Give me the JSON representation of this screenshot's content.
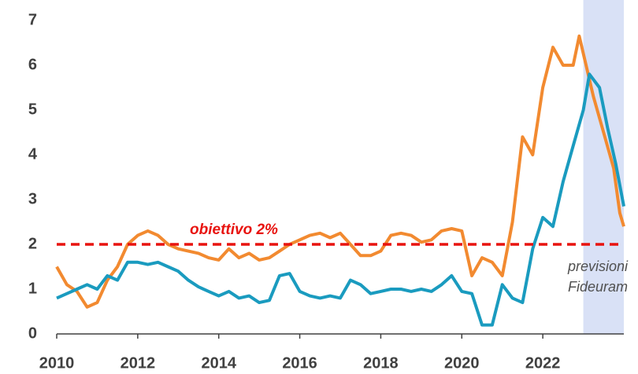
{
  "chart_data": {
    "type": "line",
    "target": 2,
    "target_color": "#e8130f",
    "target_label": "obiettivo  2%",
    "forecast_region": [
      2023,
      2024
    ],
    "forecast_color": "#d9e1f6",
    "forecast_label": [
      "previsioni",
      "Fideuram"
    ],
    "xlim": [
      2010,
      2024
    ],
    "xticks": [
      2010,
      2012,
      2014,
      2016,
      2018,
      2020,
      2022
    ],
    "ylim": [
      0,
      7
    ],
    "yticks": [
      0,
      1,
      2,
      3,
      4,
      5,
      6,
      7
    ],
    "series": [
      {
        "color": "#f28a30",
        "x": [
          2010,
          2010.25,
          2010.5,
          2010.75,
          2011,
          2011.25,
          2011.5,
          2011.75,
          2012,
          2012.25,
          2012.5,
          2012.75,
          2013,
          2013.25,
          2013.5,
          2013.75,
          2014,
          2014.25,
          2014.5,
          2014.75,
          2015,
          2015.25,
          2015.5,
          2015.75,
          2016,
          2016.25,
          2016.5,
          2016.75,
          2017,
          2017.25,
          2017.5,
          2017.75,
          2018,
          2018.25,
          2018.5,
          2018.75,
          2019,
          2019.25,
          2019.5,
          2019.75,
          2020,
          2020.25,
          2020.5,
          2020.75,
          2021,
          2021.25,
          2021.5,
          2021.75,
          2022,
          2022.25,
          2022.5,
          2022.75,
          2022.9,
          2023.25,
          2023.5,
          2023.75,
          2023.9,
          2024
        ],
        "values": [
          1.5,
          1.1,
          0.95,
          0.6,
          0.7,
          1.2,
          1.5,
          2.0,
          2.2,
          2.3,
          2.2,
          2.0,
          1.9,
          1.85,
          1.8,
          1.7,
          1.65,
          1.9,
          1.7,
          1.8,
          1.65,
          1.7,
          1.85,
          2.0,
          2.1,
          2.2,
          2.25,
          2.15,
          2.25,
          2.0,
          1.75,
          1.75,
          1.85,
          2.2,
          2.25,
          2.2,
          2.05,
          2.1,
          2.3,
          2.35,
          2.3,
          1.3,
          1.7,
          1.6,
          1.3,
          2.5,
          4.4,
          4.0,
          5.5,
          6.4,
          6.0,
          6.0,
          6.65,
          5.3,
          4.5,
          3.7,
          2.7,
          2.4
        ]
      },
      {
        "color": "#1a9bbf",
        "x": [
          2010,
          2010.25,
          2010.5,
          2010.75,
          2011,
          2011.25,
          2011.5,
          2011.75,
          2012,
          2012.25,
          2012.5,
          2012.75,
          2013,
          2013.25,
          2013.5,
          2013.75,
          2014,
          2014.25,
          2014.5,
          2014.75,
          2015,
          2015.25,
          2015.5,
          2015.75,
          2016,
          2016.25,
          2016.5,
          2016.75,
          2017,
          2017.25,
          2017.5,
          2017.75,
          2018,
          2018.25,
          2018.5,
          2018.75,
          2019,
          2019.25,
          2019.5,
          2019.75,
          2020,
          2020.25,
          2020.5,
          2020.75,
          2021,
          2021.25,
          2021.5,
          2021.75,
          2022,
          2022.25,
          2022.5,
          2022.75,
          2023,
          2023.15,
          2023.4,
          2023.6,
          2023.8,
          2024
        ],
        "values": [
          0.8,
          0.9,
          1.0,
          1.1,
          1.0,
          1.3,
          1.2,
          1.6,
          1.6,
          1.55,
          1.6,
          1.5,
          1.4,
          1.2,
          1.05,
          0.95,
          0.85,
          0.95,
          0.8,
          0.85,
          0.7,
          0.75,
          1.3,
          1.35,
          0.95,
          0.85,
          0.8,
          0.85,
          0.8,
          1.2,
          1.1,
          0.9,
          0.95,
          1.0,
          1.0,
          0.95,
          1.0,
          0.95,
          1.1,
          1.3,
          0.95,
          0.9,
          0.2,
          0.2,
          1.1,
          0.8,
          0.7,
          1.9,
          2.6,
          2.4,
          3.4,
          4.2,
          5.0,
          5.8,
          5.5,
          4.6,
          3.8,
          2.85
        ]
      }
    ]
  }
}
